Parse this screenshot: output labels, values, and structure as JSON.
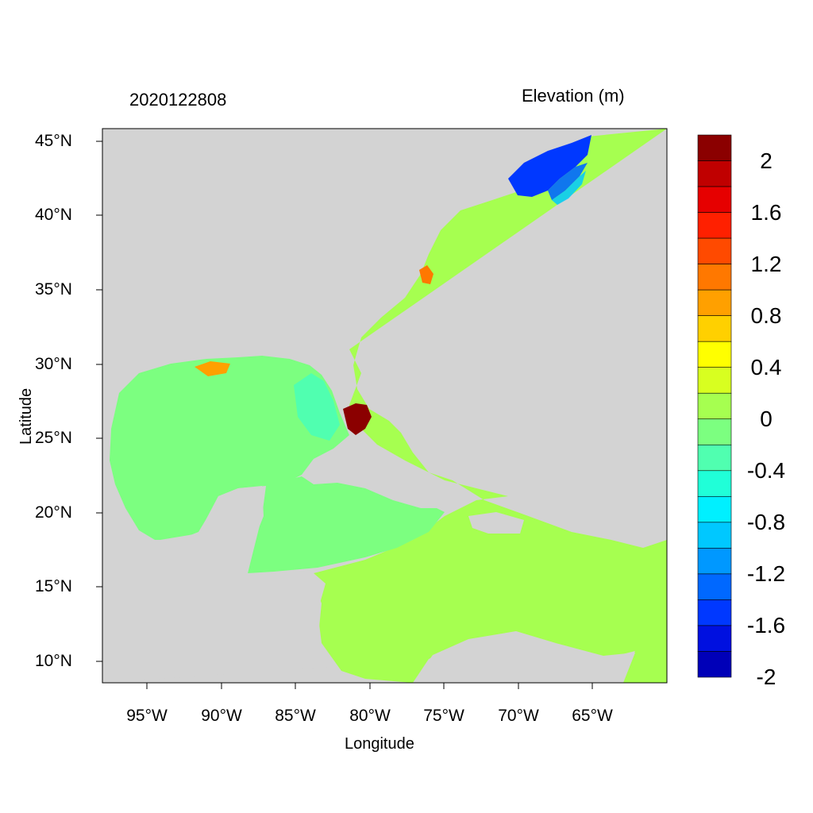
{
  "header": {
    "date_label": "2020122808",
    "variable_label": "Elevation (m)"
  },
  "axes": {
    "xlabel": "Longitude",
    "ylabel": "Latitude",
    "x_ticks": [
      "95°W",
      "90°W",
      "85°W",
      "80°W",
      "75°W",
      "70°W",
      "65°W"
    ],
    "y_ticks": [
      "45°N",
      "40°N",
      "35°N",
      "30°N",
      "25°N",
      "20°N",
      "15°N",
      "10°N"
    ]
  },
  "map": {
    "region": "Gulf of Mexico, Caribbean and western North Atlantic",
    "land_color": "#d3d3d3",
    "lon_range": [
      -98.2,
      -60.2
    ],
    "lat_range": [
      8.5,
      46
    ]
  },
  "colorbar": {
    "labels": [
      "2",
      "1.6",
      "1.2",
      "0.8",
      "0.4",
      "0",
      "-0.4",
      "-0.8",
      "-1.2",
      "-1.6",
      "-2"
    ],
    "colors": [
      "#8b0000",
      "#c00000",
      "#e60000",
      "#ff2000",
      "#ff4a00",
      "#ff7800",
      "#ffa000",
      "#ffd000",
      "#ffff00",
      "#d8ff20",
      "#a6ff50",
      "#7cff80",
      "#50ffb0",
      "#20ffd8",
      "#00f0ff",
      "#00c8ff",
      "#0098ff",
      "#0068ff",
      "#0038ff",
      "#0010e0",
      "#0000b8"
    ]
  }
}
